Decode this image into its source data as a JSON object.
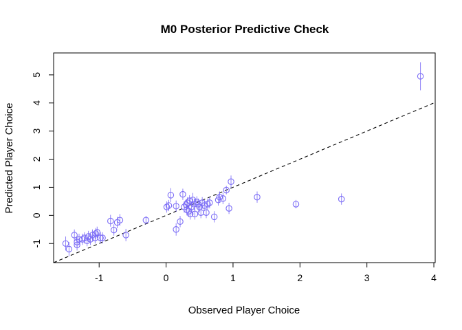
{
  "chart_data": {
    "type": "scatter",
    "title": "M0 Posterior Predictive Check",
    "xlabel": "Observed Player Choice",
    "ylabel": "Predicted Player Choice",
    "xlim": [
      -1.68,
      4.02
    ],
    "ylim": [
      -1.68,
      5.78
    ],
    "xticks": [
      -1,
      0,
      1,
      2,
      3,
      4
    ],
    "yticks": [
      -1,
      0,
      1,
      2,
      3,
      4,
      5
    ],
    "grid": false,
    "point_color": "#7b6cf6",
    "reference_line": {
      "style": "dashed",
      "slope": 1,
      "intercept": 0,
      "color": "#000000"
    },
    "series": [
      {
        "points": [
          {
            "x": -1.5,
            "y": -1.0,
            "lo": -1.25,
            "hi": -0.75
          },
          {
            "x": -1.45,
            "y": -1.2,
            "lo": -1.45,
            "hi": -0.95
          },
          {
            "x": -1.37,
            "y": -0.7,
            "lo": -0.9,
            "hi": -0.5
          },
          {
            "x": -1.33,
            "y": -0.95,
            "lo": -1.15,
            "hi": -0.75
          },
          {
            "x": -1.33,
            "y": -1.05,
            "lo": -1.25,
            "hi": -0.85
          },
          {
            "x": -1.3,
            "y": -0.85,
            "lo": -1.05,
            "hi": -0.65
          },
          {
            "x": -1.25,
            "y": -0.85,
            "lo": -1.05,
            "hi": -0.65
          },
          {
            "x": -1.22,
            "y": -0.8,
            "lo": -1.0,
            "hi": -0.6
          },
          {
            "x": -1.18,
            "y": -0.9,
            "lo": -1.1,
            "hi": -0.7
          },
          {
            "x": -1.16,
            "y": -0.75,
            "lo": -0.95,
            "hi": -0.55
          },
          {
            "x": -1.13,
            "y": -0.85,
            "lo": -1.05,
            "hi": -0.65
          },
          {
            "x": -1.1,
            "y": -0.7,
            "lo": -0.9,
            "hi": -0.5
          },
          {
            "x": -1.06,
            "y": -0.8,
            "lo": -1.0,
            "hi": -0.6
          },
          {
            "x": -1.05,
            "y": -0.65,
            "lo": -0.85,
            "hi": -0.45
          },
          {
            "x": -1.03,
            "y": -0.6,
            "lo": -0.8,
            "hi": -0.4
          },
          {
            "x": -0.98,
            "y": -0.8,
            "lo": -1.0,
            "hi": -0.6
          },
          {
            "x": -0.95,
            "y": -0.8,
            "lo": -1.0,
            "hi": -0.6
          },
          {
            "x": -0.83,
            "y": -0.2,
            "lo": -0.4,
            "hi": 0.02
          },
          {
            "x": -0.78,
            "y": -0.52,
            "lo": -0.72,
            "hi": -0.32
          },
          {
            "x": -0.73,
            "y": -0.25,
            "lo": -0.45,
            "hi": -0.05
          },
          {
            "x": -0.69,
            "y": -0.17,
            "lo": -0.37,
            "hi": 0.05
          },
          {
            "x": -0.6,
            "y": -0.7,
            "lo": -0.92,
            "hi": -0.48
          },
          {
            "x": -0.3,
            "y": -0.17,
            "lo": -0.32,
            "hi": -0.02
          },
          {
            "x": 0.01,
            "y": 0.3,
            "lo": 0.1,
            "hi": 0.5
          },
          {
            "x": 0.04,
            "y": 0.35,
            "lo": 0.15,
            "hi": 0.55
          },
          {
            "x": 0.07,
            "y": 0.72,
            "lo": 0.47,
            "hi": 0.97
          },
          {
            "x": 0.15,
            "y": 0.33,
            "lo": 0.13,
            "hi": 0.53
          },
          {
            "x": 0.15,
            "y": -0.5,
            "lo": -0.72,
            "hi": -0.28
          },
          {
            "x": 0.21,
            "y": -0.22,
            "lo": -0.42,
            "hi": -0.02
          },
          {
            "x": 0.25,
            "y": 0.75,
            "lo": 0.55,
            "hi": 0.95
          },
          {
            "x": 0.27,
            "y": 0.3,
            "lo": 0.1,
            "hi": 0.5
          },
          {
            "x": 0.3,
            "y": 0.38,
            "lo": 0.18,
            "hi": 0.58
          },
          {
            "x": 0.31,
            "y": 0.2,
            "lo": 0.0,
            "hi": 0.4
          },
          {
            "x": 0.32,
            "y": 0.45,
            "lo": 0.25,
            "hi": 0.65
          },
          {
            "x": 0.34,
            "y": 0.15,
            "lo": -0.05,
            "hi": 0.35
          },
          {
            "x": 0.35,
            "y": 0.52,
            "lo": 0.32,
            "hi": 0.72
          },
          {
            "x": 0.36,
            "y": 0.05,
            "lo": -0.15,
            "hi": 0.25
          },
          {
            "x": 0.38,
            "y": 0.3,
            "lo": 0.1,
            "hi": 0.5
          },
          {
            "x": 0.4,
            "y": 0.55,
            "lo": 0.3,
            "hi": 0.8
          },
          {
            "x": 0.42,
            "y": 0.4,
            "lo": 0.2,
            "hi": 0.6
          },
          {
            "x": 0.43,
            "y": 0.05,
            "lo": -0.15,
            "hi": 0.25
          },
          {
            "x": 0.46,
            "y": 0.48,
            "lo": 0.28,
            "hi": 0.68
          },
          {
            "x": 0.48,
            "y": 0.4,
            "lo": 0.2,
            "hi": 0.6
          },
          {
            "x": 0.5,
            "y": 0.3,
            "lo": 0.1,
            "hi": 0.5
          },
          {
            "x": 0.52,
            "y": 0.1,
            "lo": -0.1,
            "hi": 0.3
          },
          {
            "x": 0.54,
            "y": 0.45,
            "lo": 0.25,
            "hi": 0.65
          },
          {
            "x": 0.57,
            "y": 0.35,
            "lo": 0.15,
            "hi": 0.55
          },
          {
            "x": 0.6,
            "y": 0.1,
            "lo": -0.1,
            "hi": 0.3
          },
          {
            "x": 0.62,
            "y": 0.4,
            "lo": 0.2,
            "hi": 0.6
          },
          {
            "x": 0.65,
            "y": 0.45,
            "lo": 0.25,
            "hi": 0.65
          },
          {
            "x": 0.72,
            "y": -0.05,
            "lo": -0.25,
            "hi": 0.15
          },
          {
            "x": 0.78,
            "y": 0.55,
            "lo": 0.35,
            "hi": 0.75
          },
          {
            "x": 0.8,
            "y": 0.65,
            "lo": 0.45,
            "hi": 0.85
          },
          {
            "x": 0.85,
            "y": 0.6,
            "lo": 0.4,
            "hi": 0.8
          },
          {
            "x": 0.9,
            "y": 0.9,
            "lo": 0.75,
            "hi": 1.05
          },
          {
            "x": 0.94,
            "y": 0.25,
            "lo": 0.05,
            "hi": 0.45
          },
          {
            "x": 0.97,
            "y": 1.2,
            "lo": 0.98,
            "hi": 1.42
          },
          {
            "x": 1.36,
            "y": 0.65,
            "lo": 0.45,
            "hi": 0.85
          },
          {
            "x": 1.94,
            "y": 0.4,
            "lo": 0.25,
            "hi": 0.55
          },
          {
            "x": 2.62,
            "y": 0.58,
            "lo": 0.38,
            "hi": 0.78
          },
          {
            "x": 3.8,
            "y": 4.95,
            "lo": 4.45,
            "hi": 5.45
          }
        ]
      }
    ]
  }
}
